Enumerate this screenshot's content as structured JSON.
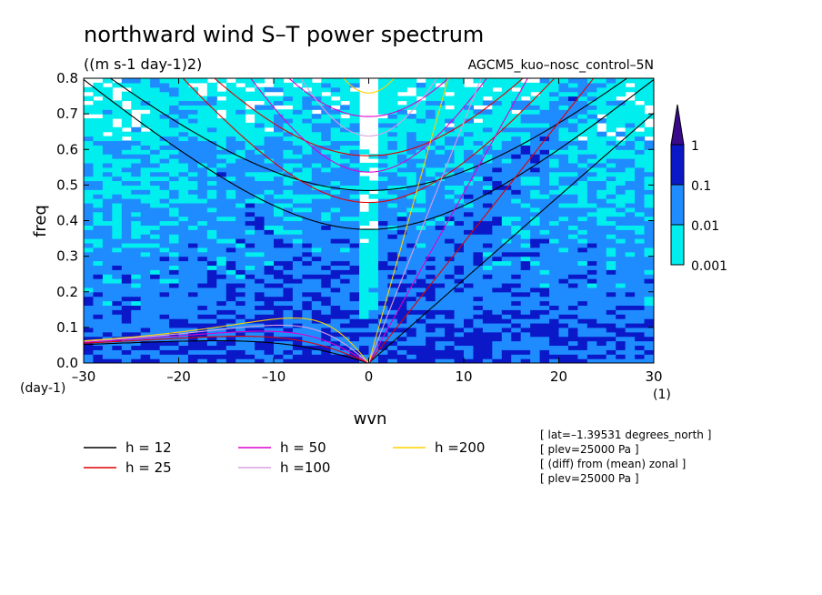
{
  "chart_data": {
    "type": "heatmap",
    "title": "northward wind S–T power spectrum",
    "subtitle": "((m s-1 day-1)2)",
    "run_label": "AGCM5_kuo–nosc_control–5N",
    "xlabel": "wvn",
    "ylabel": "freq",
    "x_unit_label": "(1)",
    "y_unit_label": "(day-1)",
    "xlim": [
      -30,
      30
    ],
    "ylim": [
      0,
      0.8
    ],
    "x_ticks": [
      "–30",
      "–20",
      "–10",
      "0",
      "10",
      "20",
      "30"
    ],
    "x_tick_values": [
      -30,
      -20,
      -10,
      0,
      10,
      20,
      30
    ],
    "y_ticks": [
      "0.0",
      "0.1",
      "0.2",
      "0.3",
      "0.4",
      "0.5",
      "0.6",
      "0.7",
      "0.8"
    ],
    "y_tick_values": [
      0,
      0.1,
      0.2,
      0.3,
      0.4,
      0.5,
      0.6,
      0.7,
      0.8
    ],
    "color_levels": [
      "0.001",
      "0.01",
      "0.1",
      "1"
    ],
    "level_values": [
      0.001,
      0.01,
      0.1,
      1
    ],
    "level_colors": [
      "#ffffff",
      "#00eeee",
      "#1e8cff",
      "#0a18c8",
      "#3a0a8c"
    ],
    "dispersion_legend": [
      {
        "label": "h = 12",
        "h": 12,
        "color": "#000000"
      },
      {
        "label": "h = 25",
        "h": 25,
        "color": "#e00000"
      },
      {
        "label": "h = 50",
        "h": 50,
        "color": "#dd00cc"
      },
      {
        "label": "h =100",
        "h": 100,
        "color": "#d8a0e0"
      },
      {
        "label": "h =200",
        "h": 200,
        "color": "#ffd000"
      }
    ],
    "info_lines": [
      "[ lat=–1.39531 degrees_north ]",
      "[ plev=25000 Pa ]",
      "[ (diff) from (mean) zonal ]",
      "[ plev=25000 Pa ]"
    ]
  }
}
